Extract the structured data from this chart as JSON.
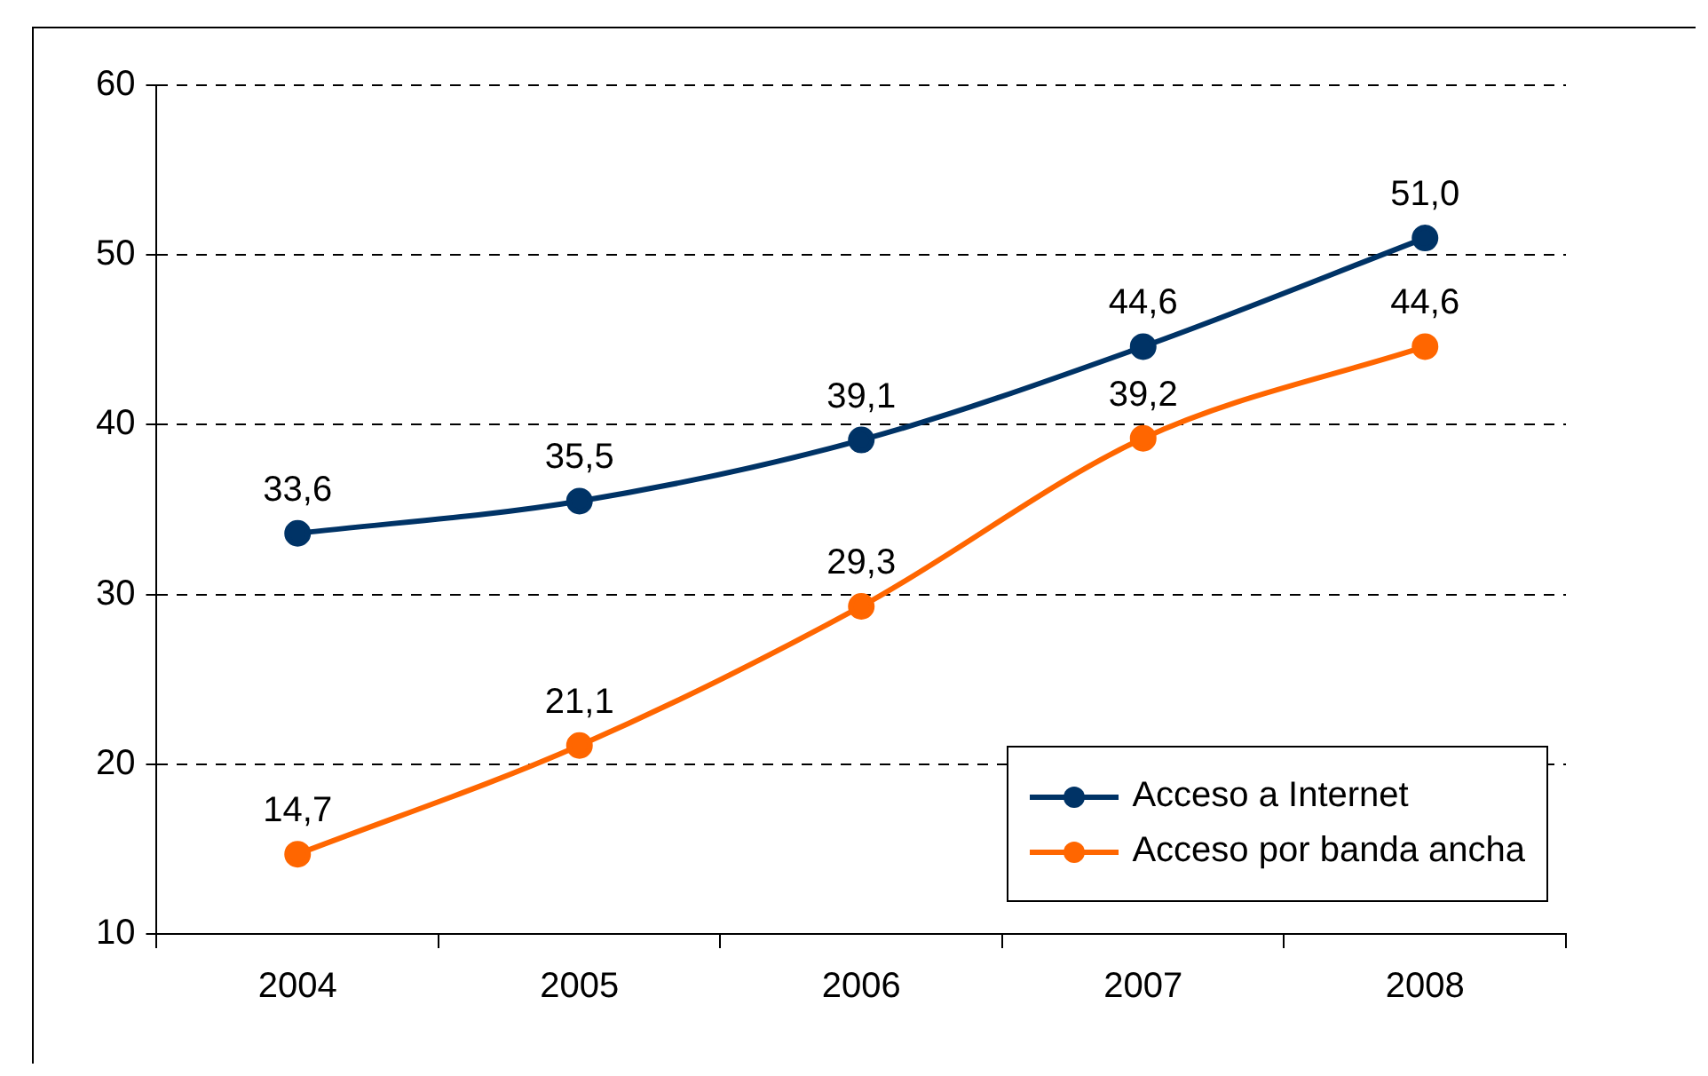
{
  "chart_data": {
    "type": "line",
    "categories": [
      "2004",
      "2005",
      "2006",
      "2007",
      "2008"
    ],
    "series": [
      {
        "name": "Acceso a Internet",
        "color": "#003366",
        "values": [
          33.6,
          35.5,
          39.1,
          44.6,
          51.0
        ],
        "value_labels": [
          "33,6",
          "35,5",
          "39,1",
          "44,6",
          "51,0"
        ]
      },
      {
        "name": "Acceso por banda ancha",
        "color": "#ff6600",
        "values": [
          14.7,
          21.1,
          29.3,
          39.2,
          44.6
        ],
        "value_labels": [
          "14,7",
          "21,1",
          "29,3",
          "39,2",
          "44,6"
        ]
      }
    ],
    "ylim": [
      10,
      60
    ],
    "yticks": [
      10,
      20,
      30,
      40,
      50,
      60
    ],
    "grid": "y",
    "legend": "bottom right",
    "marker": "circle",
    "line_style": "solid"
  }
}
